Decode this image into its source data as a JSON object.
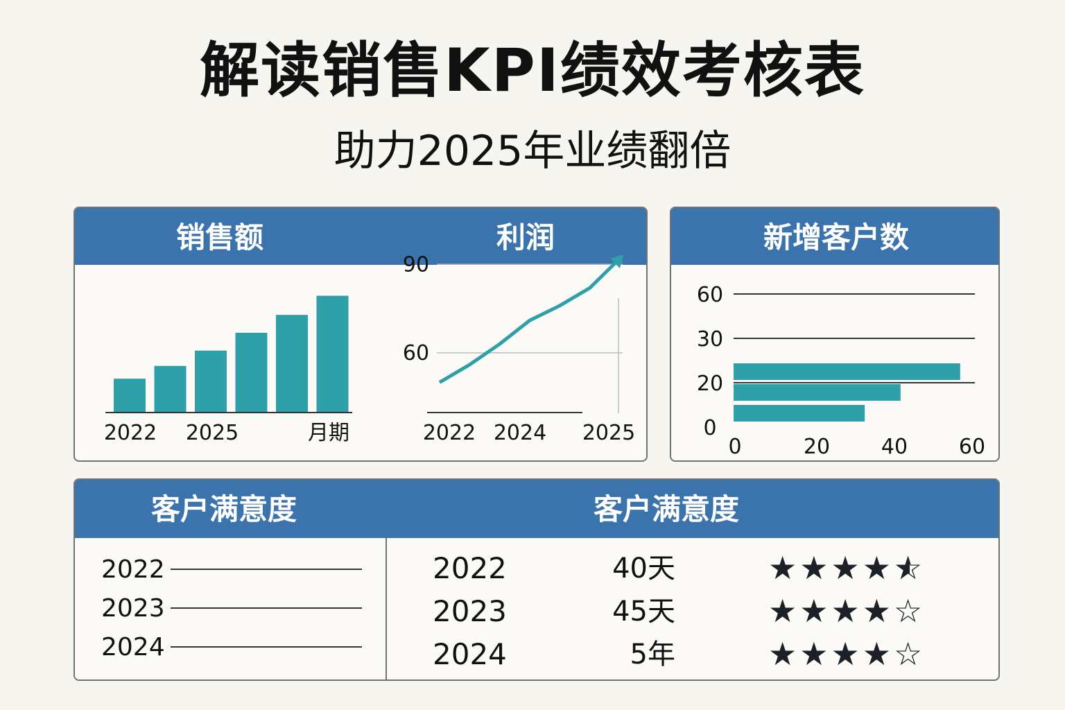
{
  "header": {
    "title": "解读销售KPI绩效考核表",
    "subtitle": "助力2025年业绩翻倍"
  },
  "colors": {
    "header_bar": "#3b73ad",
    "teal": "#2f9fa8",
    "background": "#f6f5ef"
  },
  "panels": {
    "sales_title": "销售额",
    "profit_title": "利润",
    "customers_title": "新增客户数",
    "satisfaction_left_title": "客户满意度",
    "satisfaction_right_title": "客户满意度"
  },
  "chart_data": [
    {
      "id": "sales",
      "type": "bar",
      "title": "销售额",
      "values": [
        26,
        36,
        48,
        62,
        76,
        91
      ],
      "x_tick_labels": [
        "2022",
        "2025",
        "月期"
      ],
      "ylim": [
        0,
        100
      ],
      "grid": false
    },
    {
      "id": "profit",
      "type": "line",
      "title": "利润",
      "x": [
        2022,
        2022.5,
        2023,
        2023.5,
        2024,
        2024.5,
        2025
      ],
      "y": [
        50,
        56,
        63,
        71,
        76,
        82,
        92
      ],
      "x_tick_labels": [
        "2022",
        "2024",
        "2025"
      ],
      "y_ticks": [
        60,
        90
      ],
      "y_tick_labels": [
        "60",
        "90"
      ],
      "ylim": [
        40,
        95
      ],
      "grid": true,
      "arrow": true
    },
    {
      "id": "new_customers",
      "type": "bar",
      "orientation": "horizontal",
      "title": "新增客户数",
      "values": [
        57,
        42,
        33
      ],
      "y_tick_labels": [
        "60",
        "30",
        "20",
        "0"
      ],
      "x_tick_labels": [
        "0",
        "20",
        "40",
        "60"
      ],
      "xlim": [
        0,
        60
      ],
      "grid": true
    }
  ],
  "satisfaction_left": {
    "rows": [
      "2022",
      "2023",
      "2024"
    ]
  },
  "satisfaction_right": {
    "rows": [
      {
        "year": "2022",
        "value": "40天",
        "rating": 4.5
      },
      {
        "year": "2023",
        "value": "45天",
        "rating": 4
      },
      {
        "year": "2024",
        "value": "5年",
        "rating": 4
      }
    ]
  }
}
